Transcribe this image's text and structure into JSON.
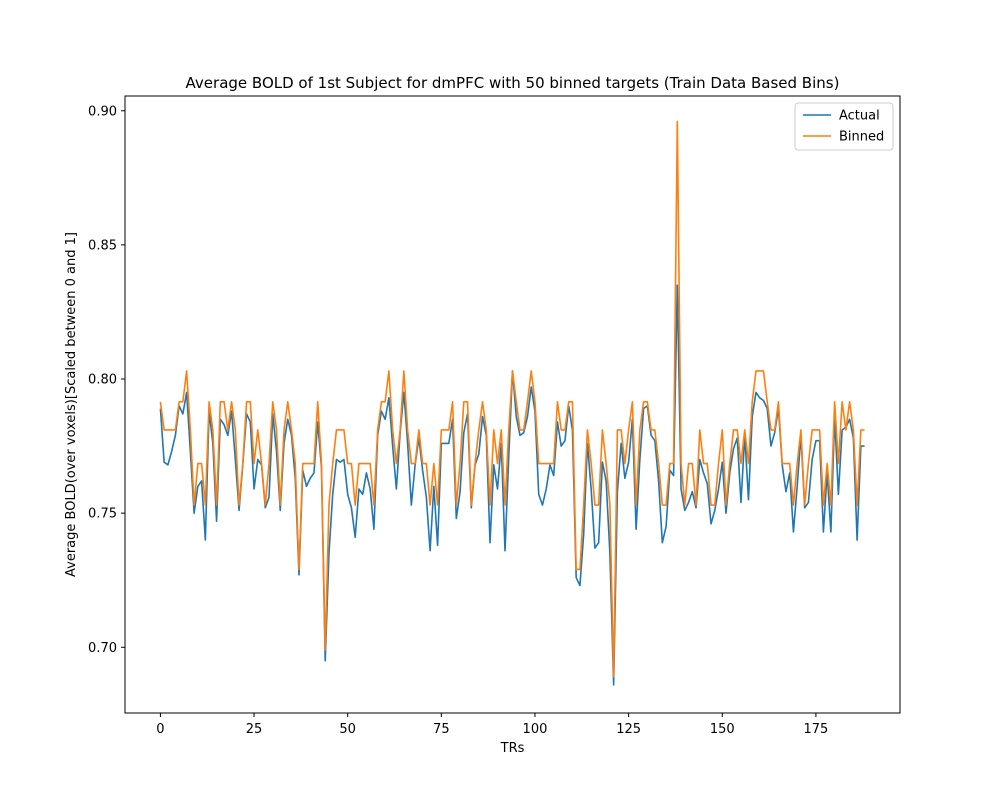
{
  "chart_data": {
    "type": "line",
    "title": "Average BOLD of 1st Subject for dmPFC with 50 binned targets (Train Data Based Bins)",
    "xlabel": "TRs",
    "ylabel": "Average BOLD(over voxels)[Scaled between 0 and 1]",
    "xlim": [
      -9.45,
      197.45
    ],
    "ylim": [
      0.6755,
      0.9055
    ],
    "xticks": [
      0,
      25,
      50,
      75,
      100,
      125,
      150,
      175
    ],
    "xtick_labels": [
      "0",
      "25",
      "50",
      "75",
      "100",
      "125",
      "150",
      "175"
    ],
    "yticks": [
      0.7,
      0.75,
      0.8,
      0.85,
      0.9
    ],
    "ytick_labels": [
      "0.70",
      "0.75",
      "0.80",
      "0.85",
      "0.90"
    ],
    "grid": false,
    "legend_position": "top-right",
    "series": [
      {
        "name": "Actual",
        "color": "#1f77b4",
        "values": [
          0.789,
          0.769,
          0.768,
          0.773,
          0.779,
          0.79,
          0.787,
          0.795,
          0.773,
          0.75,
          0.76,
          0.762,
          0.74,
          0.788,
          0.776,
          0.747,
          0.785,
          0.783,
          0.779,
          0.788,
          0.77,
          0.751,
          0.768,
          0.787,
          0.784,
          0.759,
          0.77,
          0.768,
          0.752,
          0.756,
          0.787,
          0.773,
          0.751,
          0.776,
          0.785,
          0.779,
          0.763,
          0.727,
          0.766,
          0.76,
          0.763,
          0.765,
          0.784,
          0.767,
          0.695,
          0.735,
          0.757,
          0.77,
          0.769,
          0.77,
          0.757,
          0.752,
          0.741,
          0.759,
          0.757,
          0.765,
          0.759,
          0.744,
          0.779,
          0.788,
          0.785,
          0.793,
          0.775,
          0.759,
          0.78,
          0.795,
          0.776,
          0.753,
          0.768,
          0.778,
          0.766,
          0.756,
          0.736,
          0.76,
          0.738,
          0.776,
          0.776,
          0.776,
          0.785,
          0.748,
          0.758,
          0.78,
          0.787,
          0.752,
          0.768,
          0.772,
          0.786,
          0.779,
          0.739,
          0.768,
          0.759,
          0.776,
          0.736,
          0.771,
          0.803,
          0.786,
          0.779,
          0.78,
          0.786,
          0.797,
          0.788,
          0.757,
          0.753,
          0.759,
          0.768,
          0.764,
          0.784,
          0.775,
          0.777,
          0.79,
          0.781,
          0.726,
          0.723,
          0.742,
          0.776,
          0.759,
          0.737,
          0.739,
          0.769,
          0.762,
          0.735,
          0.686,
          0.758,
          0.776,
          0.763,
          0.769,
          0.785,
          0.744,
          0.77,
          0.789,
          0.79,
          0.779,
          0.777,
          0.762,
          0.739,
          0.745,
          0.766,
          0.764,
          0.835,
          0.759,
          0.751,
          0.754,
          0.758,
          0.752,
          0.77,
          0.765,
          0.761,
          0.746,
          0.751,
          0.759,
          0.769,
          0.75,
          0.765,
          0.774,
          0.778,
          0.754,
          0.779,
          0.755,
          0.786,
          0.795,
          0.793,
          0.792,
          0.789,
          0.775,
          0.78,
          0.789,
          0.768,
          0.758,
          0.765,
          0.743,
          0.76,
          0.779,
          0.752,
          0.754,
          0.77,
          0.777,
          0.777,
          0.743,
          0.765,
          0.743,
          0.786,
          0.757,
          0.781,
          0.782,
          0.785,
          0.778,
          0.74,
          0.775,
          0.775
        ]
      },
      {
        "name": "Binned",
        "color": "#ff7f0e",
        "values": [
          0.7915,
          0.781,
          0.781,
          0.781,
          0.781,
          0.7915,
          0.7915,
          0.803,
          0.781,
          0.753,
          0.7685,
          0.7685,
          0.753,
          0.7915,
          0.781,
          0.753,
          0.7915,
          0.7915,
          0.781,
          0.7915,
          0.781,
          0.753,
          0.7685,
          0.7915,
          0.7915,
          0.7685,
          0.781,
          0.7685,
          0.753,
          0.7685,
          0.7915,
          0.781,
          0.753,
          0.781,
          0.7915,
          0.781,
          0.7685,
          0.729,
          0.7685,
          0.7685,
          0.7685,
          0.7685,
          0.7915,
          0.7685,
          0.699,
          0.753,
          0.7685,
          0.781,
          0.781,
          0.781,
          0.7685,
          0.7685,
          0.753,
          0.7685,
          0.7685,
          0.7685,
          0.7685,
          0.753,
          0.781,
          0.7915,
          0.7915,
          0.803,
          0.781,
          0.7685,
          0.781,
          0.803,
          0.781,
          0.7685,
          0.7685,
          0.781,
          0.7685,
          0.7685,
          0.753,
          0.7685,
          0.753,
          0.781,
          0.781,
          0.781,
          0.7915,
          0.753,
          0.7685,
          0.7915,
          0.7915,
          0.753,
          0.7685,
          0.781,
          0.7915,
          0.781,
          0.753,
          0.781,
          0.7685,
          0.781,
          0.753,
          0.781,
          0.803,
          0.7915,
          0.781,
          0.781,
          0.7915,
          0.803,
          0.7915,
          0.7685,
          0.7685,
          0.7685,
          0.7685,
          0.7685,
          0.7915,
          0.781,
          0.781,
          0.7915,
          0.7915,
          0.729,
          0.729,
          0.753,
          0.781,
          0.7685,
          0.753,
          0.753,
          0.781,
          0.7685,
          0.753,
          0.689,
          0.781,
          0.781,
          0.7685,
          0.781,
          0.7915,
          0.753,
          0.781,
          0.7915,
          0.7915,
          0.781,
          0.781,
          0.7685,
          0.753,
          0.753,
          0.7685,
          0.7685,
          0.896,
          0.7685,
          0.753,
          0.7685,
          0.7685,
          0.753,
          0.781,
          0.7685,
          0.7685,
          0.753,
          0.753,
          0.7685,
          0.781,
          0.753,
          0.7685,
          0.781,
          0.781,
          0.7685,
          0.781,
          0.7685,
          0.7915,
          0.803,
          0.803,
          0.803,
          0.7915,
          0.781,
          0.781,
          0.7915,
          0.7685,
          0.7685,
          0.7685,
          0.753,
          0.7685,
          0.781,
          0.753,
          0.7685,
          0.781,
          0.781,
          0.781,
          0.753,
          0.7685,
          0.753,
          0.7915,
          0.7685,
          0.7915,
          0.781,
          0.7915,
          0.781,
          0.753,
          0.781,
          0.781
        ]
      }
    ]
  }
}
